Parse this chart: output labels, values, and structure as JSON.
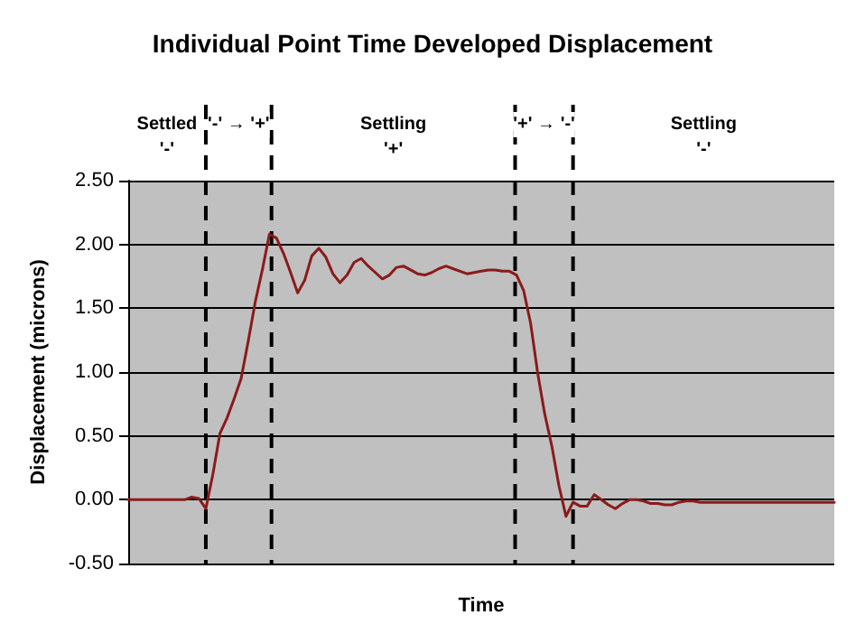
{
  "chart_data": {
    "type": "line",
    "title": "Individual Point Time Developed Displacement",
    "xlabel": "Time",
    "ylabel": "Displacement (microns)",
    "tick_labels": "y",
    "grid": "y",
    "line_style": "solid",
    "ylim": [
      -0.5,
      2.5
    ],
    "yticks": [
      {
        "value": -0.5,
        "label": "-0.50"
      },
      {
        "value": 0,
        "label": "0.00"
      },
      {
        "value": 0.5,
        "label": "0.50"
      },
      {
        "value": 1,
        "label": "1.00"
      },
      {
        "value": 1.5,
        "label": "1.50"
      },
      {
        "value": 2,
        "label": "2.00"
      },
      {
        "value": 2.5,
        "label": "2.50"
      }
    ],
    "categories": [
      null,
      null,
      null,
      null,
      null,
      null,
      null,
      null,
      null,
      null,
      null,
      null,
      null,
      null,
      null,
      null,
      null,
      null,
      null,
      null,
      null,
      null,
      null,
      null,
      null,
      null,
      null,
      null,
      null,
      null,
      null,
      null,
      null,
      null,
      null,
      null,
      null,
      null,
      null,
      null,
      null,
      null,
      null,
      null,
      null,
      null,
      null,
      null,
      null,
      null,
      null,
      null,
      null,
      null,
      null,
      null,
      null,
      null,
      null,
      null,
      null,
      null,
      null,
      null,
      null,
      null,
      null,
      null,
      null,
      null,
      null,
      null,
      null,
      null,
      null,
      null,
      null,
      null,
      null,
      null,
      null,
      null,
      null,
      null,
      null,
      null,
      null,
      null,
      null,
      null,
      null,
      null,
      null,
      null,
      null,
      null,
      null,
      null,
      null,
      null,
      null
    ],
    "series": [
      {
        "color": "#8b1a1a",
        "values": [
          0,
          0,
          0,
          0,
          0,
          0,
          0,
          0,
          0,
          0.02,
          0.01,
          -0.07,
          0.2,
          0.52,
          0.64,
          0.79,
          0.95,
          1.24,
          1.55,
          1.8,
          2.08,
          2.05,
          1.93,
          1.78,
          1.62,
          1.72,
          1.91,
          1.97,
          1.9,
          1.77,
          1.7,
          1.76,
          1.86,
          1.89,
          1.83,
          1.78,
          1.73,
          1.76,
          1.82,
          1.83,
          1.8,
          1.77,
          1.76,
          1.78,
          1.81,
          1.83,
          1.81,
          1.79,
          1.77,
          1.78,
          1.79,
          1.8,
          1.8,
          1.79,
          1.79,
          1.76,
          1.64,
          1.38,
          0.99,
          0.67,
          0.42,
          0.11,
          -0.13,
          -0.02,
          -0.05,
          -0.05,
          0.04,
          0,
          -0.04,
          -0.07,
          -0.03,
          0,
          0,
          -0.01,
          -0.03,
          -0.03,
          -0.04,
          -0.04,
          -0.02,
          -0.01,
          -0.01,
          -0.02,
          -0.02,
          -0.02,
          -0.02,
          -0.02,
          -0.02,
          -0.02,
          -0.02,
          -0.02,
          -0.02,
          -0.02,
          -0.02,
          -0.02,
          -0.02,
          -0.02,
          -0.02,
          -0.02,
          -0.02,
          -0.02,
          -0.02
        ]
      }
    ],
    "annotations": [
      "Settled\n'-'",
      "'-' → '+'",
      "Settling\n'+'",
      "'+' → '-'",
      "Settling\n'-'"
    ]
  }
}
